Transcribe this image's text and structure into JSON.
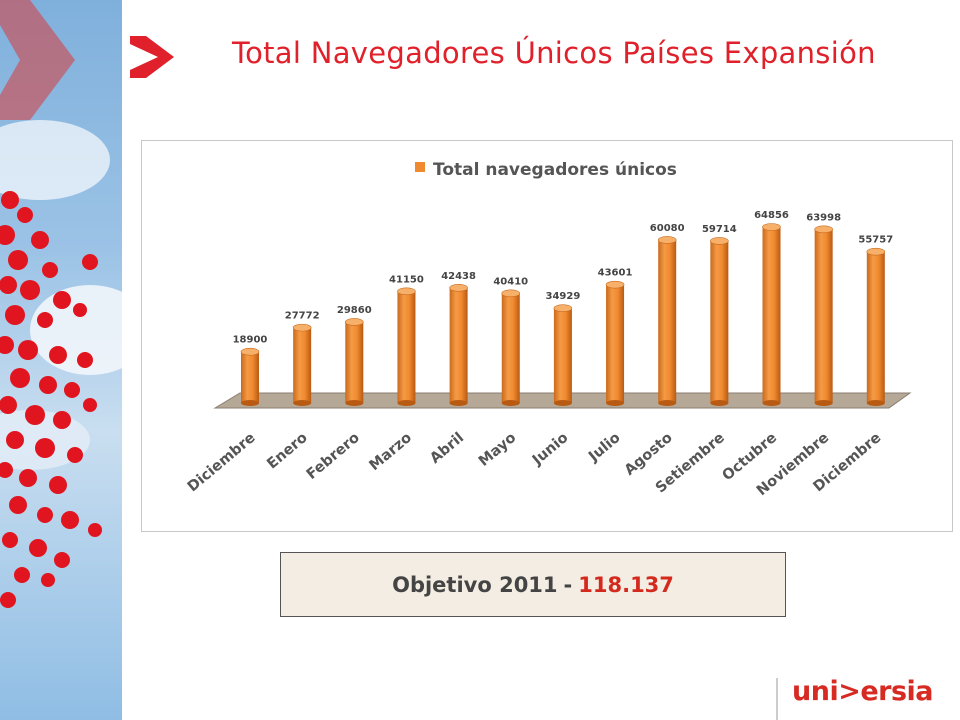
{
  "slide": {
    "title": "Total Navegadores Únicos Países Expansión"
  },
  "objetivo": {
    "label": "Objetivo 2011",
    "separator": "-",
    "value": "118.137"
  },
  "logo": {
    "text": "uni>ersia"
  },
  "colors": {
    "title": "#e0202a",
    "bar": "#f08a30",
    "floor": "#b5a896"
  },
  "chart_data": {
    "type": "bar",
    "title": "",
    "legend": [
      "Total navegadores únicos"
    ],
    "legend_position": "top",
    "categories": [
      "Diciembre",
      "Enero",
      "Febrero",
      "Marzo",
      "Abril",
      "Mayo",
      "Junio",
      "Julio",
      "Agosto",
      "Setiembre",
      "Octubre",
      "Noviembre",
      "Diciembre"
    ],
    "series": [
      {
        "name": "Total navegadores únicos",
        "values": [
          18900,
          27772,
          29860,
          41150,
          42438,
          40410,
          34929,
          43601,
          60080,
          59714,
          64856,
          63998,
          55757
        ]
      }
    ],
    "data_labels": [
      "18900",
      "27772",
      "29860",
      "41150",
      "42438",
      "40410",
      "34929",
      "43601",
      "60080",
      "59714",
      "64856",
      "63998",
      "55757"
    ],
    "xlabel": "",
    "ylabel": "",
    "grid": false,
    "bar_shape": "3d-cylinder"
  }
}
